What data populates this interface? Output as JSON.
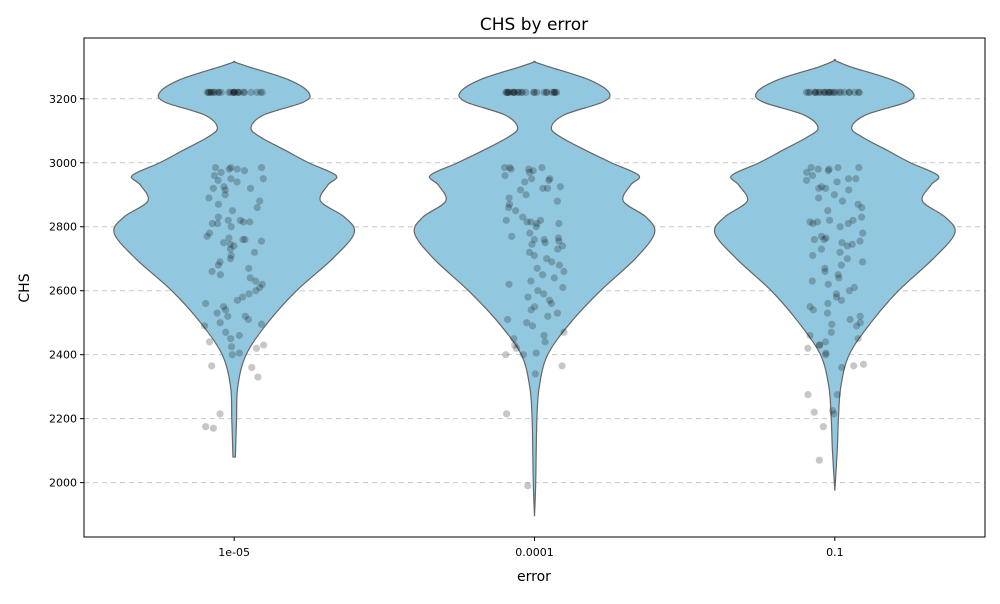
{
  "chart_data": {
    "type": "violin",
    "title": "CHS by error",
    "xlabel": "error",
    "ylabel": "CHS",
    "categories": [
      "1e-05",
      "0.0001",
      "0.1"
    ],
    "ylim": [
      1830,
      3390
    ],
    "yticks": [
      2000,
      2200,
      2400,
      2600,
      2800,
      3000,
      3200
    ],
    "ytick_labels": [
      "2000",
      "2200",
      "2400",
      "2600",
      "2800",
      "3000",
      "3200"
    ],
    "grid": {
      "y": true,
      "x": false,
      "style": "dashed"
    },
    "colors": {
      "violin_fill": "#92c8df",
      "violin_edge": "#666666",
      "points": "#000000"
    },
    "violins": [
      {
        "category": "1e-05",
        "min": 2080,
        "max": 3315,
        "density": [
          [
            2080,
            0.01
          ],
          [
            2200,
            0.02
          ],
          [
            2300,
            0.03
          ],
          [
            2400,
            0.1
          ],
          [
            2500,
            0.28
          ],
          [
            2600,
            0.52
          ],
          [
            2700,
            0.82
          ],
          [
            2780,
            1.0
          ],
          [
            2830,
            0.92
          ],
          [
            2880,
            0.72
          ],
          [
            2930,
            0.78
          ],
          [
            2960,
            0.85
          ],
          [
            3000,
            0.62
          ],
          [
            3040,
            0.42
          ],
          [
            3080,
            0.22
          ],
          [
            3110,
            0.14
          ],
          [
            3150,
            0.25
          ],
          [
            3190,
            0.58
          ],
          [
            3220,
            0.62
          ],
          [
            3260,
            0.45
          ],
          [
            3300,
            0.12
          ],
          [
            3315,
            0.0
          ]
        ]
      },
      {
        "category": "0.0001",
        "min": 1895,
        "max": 3315,
        "density": [
          [
            1895,
            0.0
          ],
          [
            2000,
            0.01
          ],
          [
            2200,
            0.02
          ],
          [
            2300,
            0.04
          ],
          [
            2400,
            0.11
          ],
          [
            2500,
            0.3
          ],
          [
            2600,
            0.55
          ],
          [
            2700,
            0.84
          ],
          [
            2780,
            1.0
          ],
          [
            2830,
            0.93
          ],
          [
            2880,
            0.74
          ],
          [
            2930,
            0.8
          ],
          [
            2960,
            0.87
          ],
          [
            3000,
            0.64
          ],
          [
            3040,
            0.42
          ],
          [
            3080,
            0.22
          ],
          [
            3110,
            0.14
          ],
          [
            3150,
            0.25
          ],
          [
            3190,
            0.57
          ],
          [
            3220,
            0.62
          ],
          [
            3260,
            0.45
          ],
          [
            3300,
            0.12
          ],
          [
            3315,
            0.0
          ]
        ]
      },
      {
        "category": "0.1",
        "min": 1975,
        "max": 3320,
        "density": [
          [
            1975,
            0.0
          ],
          [
            2100,
            0.02
          ],
          [
            2200,
            0.03
          ],
          [
            2300,
            0.05
          ],
          [
            2400,
            0.12
          ],
          [
            2500,
            0.3
          ],
          [
            2600,
            0.53
          ],
          [
            2700,
            0.82
          ],
          [
            2780,
            1.0
          ],
          [
            2830,
            0.92
          ],
          [
            2880,
            0.73
          ],
          [
            2930,
            0.8
          ],
          [
            2960,
            0.86
          ],
          [
            3000,
            0.63
          ],
          [
            3040,
            0.43
          ],
          [
            3080,
            0.23
          ],
          [
            3110,
            0.14
          ],
          [
            3150,
            0.26
          ],
          [
            3190,
            0.6
          ],
          [
            3220,
            0.65
          ],
          [
            3260,
            0.47
          ],
          [
            3300,
            0.13
          ],
          [
            3320,
            0.0
          ]
        ]
      }
    ],
    "points": [
      {
        "category": "1e-05",
        "values": [
          3220,
          3220,
          3220,
          3220,
          3220,
          3220,
          3220,
          3220,
          3220,
          3220,
          3220,
          3220,
          3220,
          3220,
          3220,
          3220,
          3220,
          3220,
          3220,
          3220,
          3220,
          3220,
          3220,
          3220,
          3220,
          2985,
          2985,
          2985,
          2980,
          2980,
          2975,
          2970,
          2960,
          2950,
          2950,
          2945,
          2940,
          2925,
          2920,
          2920,
          2915,
          2900,
          2890,
          2880,
          2870,
          2860,
          2850,
          2830,
          2820,
          2820,
          2815,
          2815,
          2810,
          2810,
          2800,
          2780,
          2770,
          2765,
          2760,
          2760,
          2755,
          2750,
          2745,
          2740,
          2730,
          2720,
          2710,
          2700,
          2690,
          2680,
          2670,
          2660,
          2650,
          2640,
          2630,
          2620,
          2610,
          2600,
          2590,
          2580,
          2570,
          2560,
          2550,
          2540,
          2530,
          2520,
          2520,
          2510,
          2500,
          2495,
          2490,
          2470,
          2460,
          2450,
          2440,
          2430,
          2425,
          2420,
          2405,
          2400,
          2365,
          2360,
          2330,
          2215,
          2175,
          2170
        ]
      },
      {
        "category": "0.0001",
        "values": [
          3220,
          3220,
          3220,
          3220,
          3220,
          3220,
          3220,
          3220,
          3220,
          3220,
          3220,
          3220,
          3220,
          3220,
          3220,
          3220,
          3220,
          3220,
          3220,
          3220,
          3220,
          3220,
          3220,
          3220,
          3220,
          2985,
          2985,
          2985,
          2980,
          2980,
          2975,
          2970,
          2960,
          2950,
          2950,
          2945,
          2940,
          2925,
          2920,
          2920,
          2915,
          2900,
          2890,
          2880,
          2870,
          2860,
          2850,
          2830,
          2820,
          2820,
          2815,
          2815,
          2810,
          2810,
          2800,
          2780,
          2770,
          2765,
          2760,
          2760,
          2755,
          2750,
          2745,
          2740,
          2730,
          2720,
          2710,
          2700,
          2690,
          2680,
          2670,
          2660,
          2650,
          2640,
          2630,
          2620,
          2610,
          2600,
          2590,
          2580,
          2570,
          2560,
          2550,
          2540,
          2530,
          2520,
          2510,
          2500,
          2490,
          2470,
          2460,
          2450,
          2440,
          2430,
          2420,
          2405,
          2400,
          2400,
          2365,
          2340,
          2215,
          1990
        ]
      },
      {
        "category": "0.1",
        "values": [
          3220,
          3220,
          3220,
          3220,
          3220,
          3220,
          3220,
          3220,
          3220,
          3220,
          3220,
          3220,
          3220,
          3220,
          3220,
          3220,
          3220,
          3220,
          3220,
          3220,
          3220,
          3220,
          3220,
          3220,
          3220,
          2985,
          2985,
          2985,
          2980,
          2980,
          2975,
          2970,
          2960,
          2950,
          2950,
          2945,
          2940,
          2925,
          2920,
          2920,
          2915,
          2900,
          2890,
          2880,
          2870,
          2860,
          2850,
          2830,
          2820,
          2820,
          2815,
          2815,
          2810,
          2810,
          2800,
          2780,
          2770,
          2765,
          2760,
          2760,
          2755,
          2750,
          2745,
          2740,
          2730,
          2720,
          2710,
          2700,
          2690,
          2680,
          2670,
          2660,
          2650,
          2640,
          2630,
          2620,
          2610,
          2600,
          2590,
          2580,
          2570,
          2560,
          2550,
          2540,
          2530,
          2520,
          2510,
          2500,
          2495,
          2490,
          2470,
          2460,
          2450,
          2440,
          2430,
          2430,
          2420,
          2405,
          2400,
          2370,
          2365,
          2360,
          2275,
          2275,
          2225,
          2220,
          2215,
          2175,
          2070
        ]
      }
    ]
  }
}
